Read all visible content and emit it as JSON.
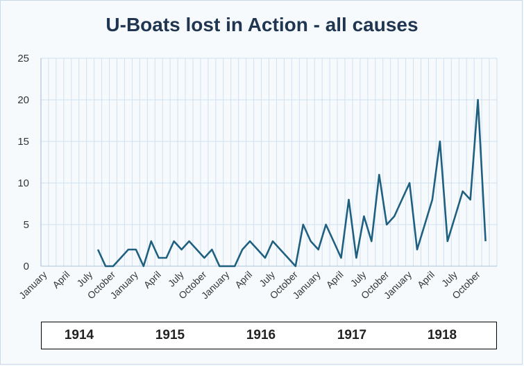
{
  "chart_data": {
    "type": "line",
    "title": "U-Boats lost in Action - all causes",
    "ylim": [
      0,
      25
    ],
    "yticks": [
      0,
      5,
      10,
      15,
      20,
      25
    ],
    "grid": true,
    "xlabel": "",
    "ylabel": "",
    "years": [
      "1914",
      "1915",
      "1916",
      "1917",
      "1918"
    ],
    "months_per_year": 12,
    "tick_months": [
      "January",
      "April",
      "July",
      "October"
    ],
    "line_color": "#1f5f7f",
    "series": [
      {
        "values": [
          null,
          null,
          null,
          null,
          null,
          null,
          null,
          2,
          0,
          0,
          1,
          2,
          2,
          0,
          3,
          1,
          1,
          3,
          2,
          3,
          2,
          1,
          2,
          0,
          0,
          0,
          2,
          3,
          2,
          1,
          3,
          2,
          1,
          0,
          5,
          3,
          2,
          5,
          3,
          1,
          8,
          1,
          6,
          3,
          11,
          5,
          6,
          8,
          10,
          2,
          5,
          8,
          15,
          3,
          6,
          9,
          8,
          20,
          3
        ]
      }
    ]
  }
}
